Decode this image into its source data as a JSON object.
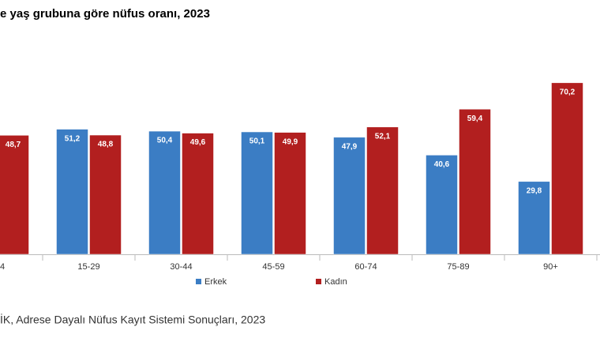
{
  "chart_data": {
    "type": "bar",
    "title": "e yaş grubuna göre nüfus oranı, 2023",
    "categories": [
      "4",
      "15-29",
      "30-44",
      "45-59",
      "60-74",
      "75-89",
      "90+"
    ],
    "series": [
      {
        "name": "Erkek",
        "color": "#3b7dc4",
        "values": [
          null,
          51.2,
          50.4,
          50.1,
          47.9,
          40.6,
          29.8
        ],
        "value_labels": [
          null,
          "51,2",
          "50,4",
          "50,1",
          "47,9",
          "40,6",
          "29,8"
        ]
      },
      {
        "name": "Kadın",
        "color": "#b21f1f",
        "values": [
          48.7,
          48.8,
          49.6,
          49.9,
          52.1,
          59.4,
          70.2
        ],
        "value_labels": [
          "48,7",
          "48,8",
          "49,6",
          "49,9",
          "52,1",
          "59,4",
          "70,2"
        ]
      }
    ],
    "ylim": [
      0,
      75
    ],
    "source": "İK, Adrese Dayalı Nüfus Kayıt Sistemi Sonuçları, 2023"
  }
}
